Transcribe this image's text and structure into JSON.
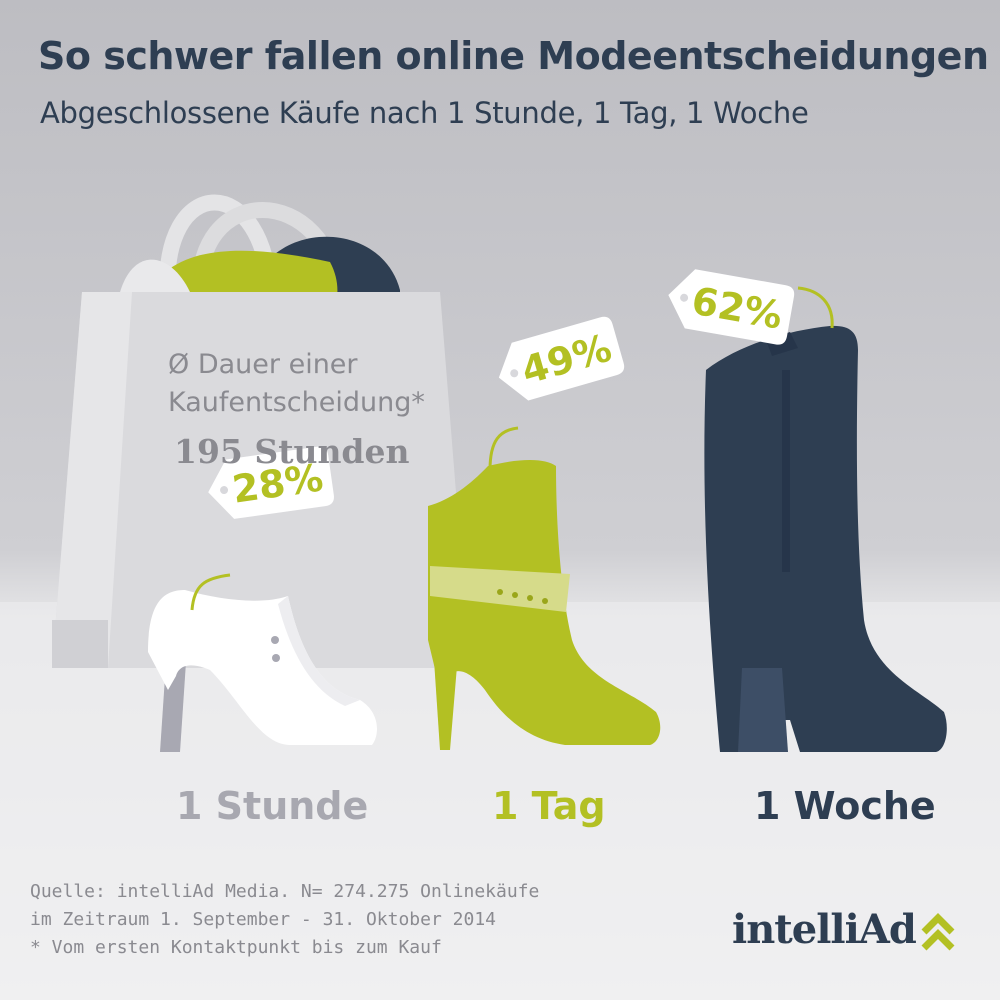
{
  "title": "So schwer fallen online Modeentscheidungen",
  "subtitle": "Abgeschlossene Käufe nach 1 Stunde, 1 Tag, 1 Woche",
  "bag": {
    "line1": "Ø Dauer einer",
    "line2": "Kaufentscheidung*",
    "value": "195 Stunden"
  },
  "chart_data": {
    "type": "bar",
    "title": "So schwer fallen online Modeentscheidungen",
    "subtitle": "Abgeschlossene Käufe nach 1 Stunde, 1 Tag, 1 Woche",
    "categories": [
      "1 Stunde",
      "1 Tag",
      "1 Woche"
    ],
    "values": [
      28,
      49,
      62
    ],
    "value_labels": [
      "28%",
      "49%",
      "62%"
    ],
    "unit": "%",
    "category_colors": [
      "#a8a8b0",
      "#b3c023",
      "#2e3e52"
    ],
    "mark_colors": [
      "#ffffff",
      "#b3c023",
      "#2e3e52"
    ]
  },
  "footer": {
    "line1": "Quelle: intelliAd Media. N= 274.275 Onlinekäufe",
    "line2": "im Zeitraum 1. September - 31. Oktober 2014",
    "line3": "* Vom ersten Kontaktpunkt bis zum Kauf"
  },
  "logo": {
    "text": "intelliAd",
    "icon": "double-chevron-up-icon"
  },
  "colors": {
    "navy": "#2e3e52",
    "lime": "#b3c023",
    "gray_text": "#8a8a90",
    "background": "#c9c9ce"
  }
}
